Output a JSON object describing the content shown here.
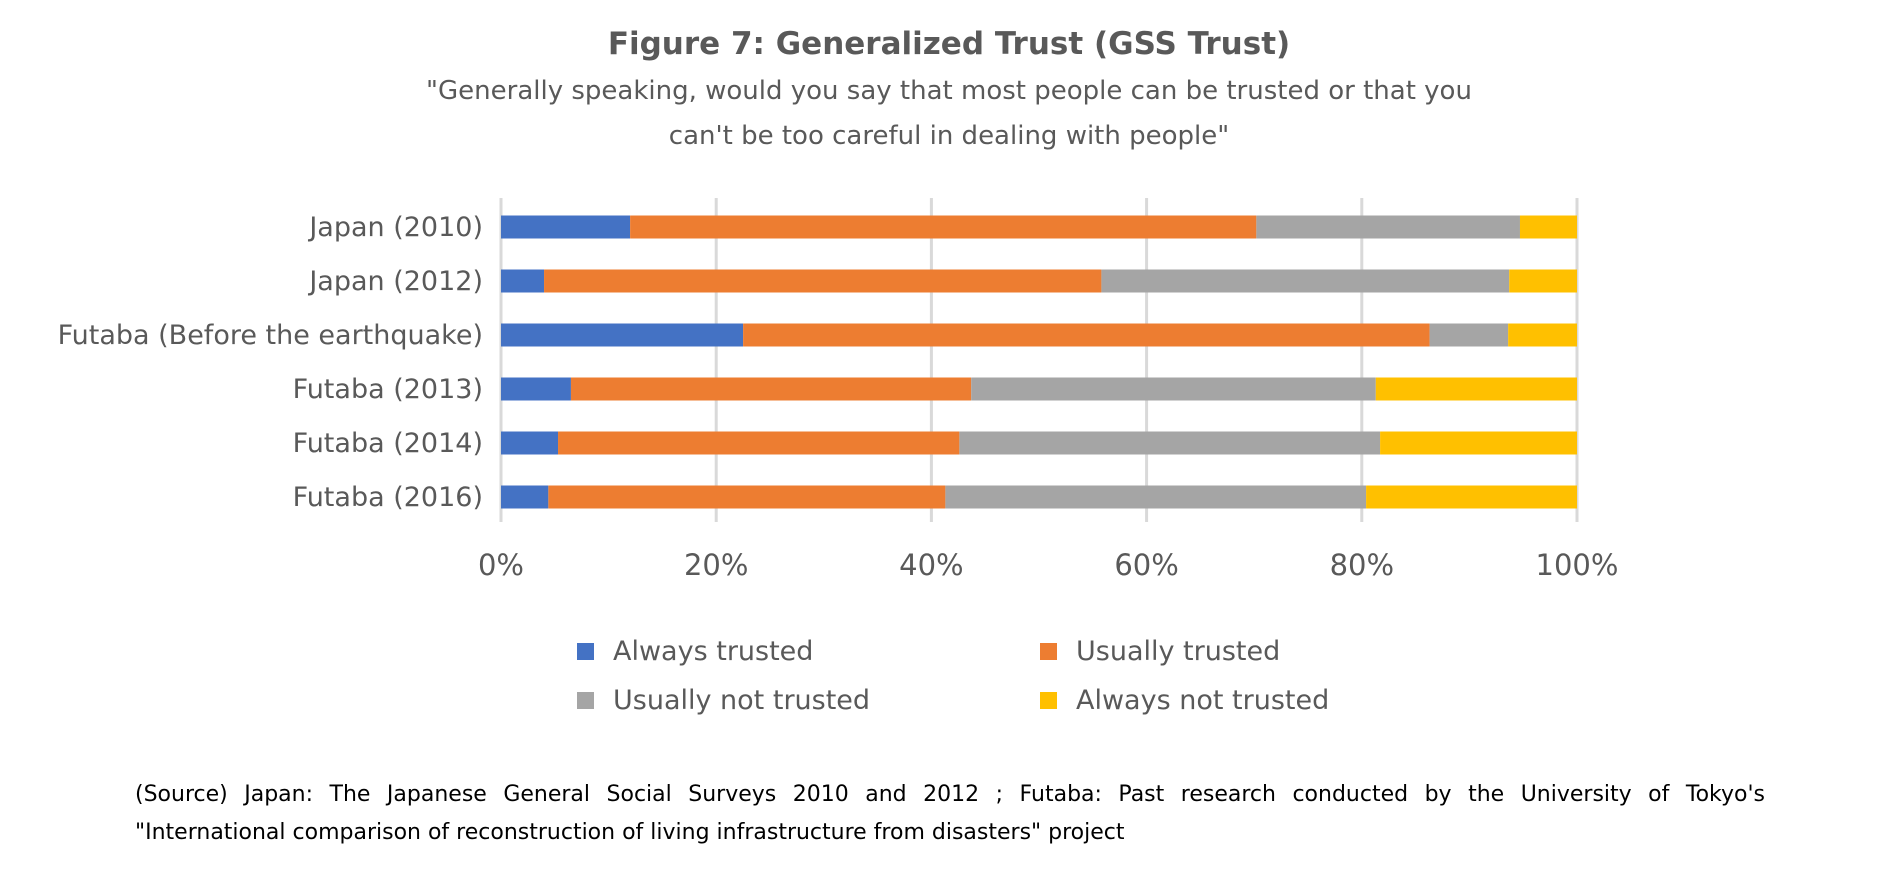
{
  "chart_data": {
    "type": "bar",
    "orientation": "horizontal",
    "stacked": "percent",
    "title": "Figure 7: Generalized Trust (GSS Trust)",
    "subtitle": [
      "\"Generally speaking, would you say that most people can be trusted or that you",
      "can't be too careful in dealing with people\""
    ],
    "categories": [
      "Japan (2010)",
      "Japan (2012)",
      "Futaba (Before the earthquake)",
      "Futaba (2013)",
      "Futaba (2014)",
      "Futaba (2016)"
    ],
    "series": [
      {
        "name": "Always trusted",
        "color": "#4472C4",
        "values": [
          12,
          4,
          22.5,
          6.5,
          5.3,
          4.4
        ]
      },
      {
        "name": "Usually trusted",
        "color": "#ED7D31",
        "values": [
          58.2,
          51.8,
          63.8,
          37.2,
          37.3,
          36.9
        ]
      },
      {
        "name": "Usually not trusted",
        "color": "#A5A5A5",
        "values": [
          24.5,
          37.9,
          7.3,
          37.6,
          39.1,
          39.1
        ]
      },
      {
        "name": "Always not trusted",
        "color": "#FFC000",
        "values": [
          5.3,
          6.3,
          6.4,
          18.7,
          18.3,
          19.6
        ]
      }
    ],
    "x_ticks": [
      "0%",
      "20%",
      "40%",
      "60%",
      "80%",
      "100%"
    ],
    "xlim": [
      0,
      100
    ],
    "grid": true,
    "legend": "bottom"
  },
  "source": {
    "line1": "(Source)    Japan: The Japanese General Social Surveys 2010 and 2012 ; Futaba: Past research conducted by the University of Tokyo's",
    "line2": "\"International comparison of reconstruction of living infrastructure from disasters\" project"
  }
}
